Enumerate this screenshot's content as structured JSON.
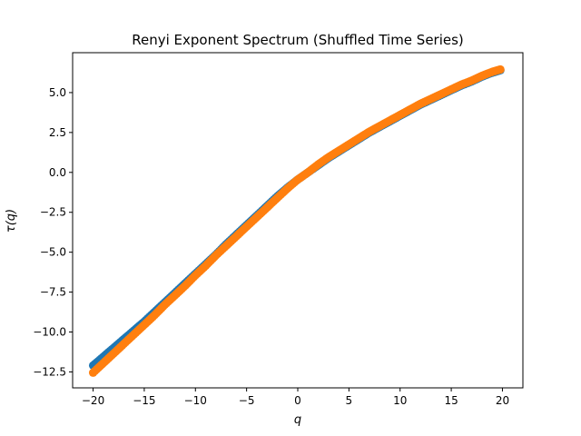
{
  "chart_data": {
    "type": "scatter",
    "title": "Renyi Exponent Spectrum (Shuffled Time Series)",
    "xlabel": "q",
    "ylabel": "τ(q)",
    "xlim": [
      -22,
      22
    ],
    "ylim": [
      -13.5,
      7.5
    ],
    "xticks": [
      -20,
      -15,
      -10,
      -5,
      0,
      5,
      10,
      15,
      20
    ],
    "xtick_labels": [
      "−20",
      "−15",
      "−10",
      "−5",
      "0",
      "5",
      "10",
      "15",
      "20"
    ],
    "yticks": [
      -12.5,
      -10.0,
      -7.5,
      -5.0,
      -2.5,
      0.0,
      2.5,
      5.0
    ],
    "ytick_labels": [
      "−12.5",
      "−10.0",
      "−7.5",
      "−5.0",
      "−2.5",
      "0.0",
      "2.5",
      "5.0"
    ],
    "grid": false,
    "legend": "none",
    "series": [
      {
        "color": "#1f77b4",
        "x": [
          -20,
          -19,
          -18,
          -17,
          -16,
          -15,
          -14,
          -13,
          -12,
          -11,
          -10,
          -9,
          -8,
          -7,
          -6,
          -5,
          -4,
          -3,
          -2,
          -1,
          0,
          1,
          2,
          3,
          4,
          5,
          6,
          7,
          8,
          9,
          10,
          11,
          12,
          13,
          14,
          15,
          16,
          17,
          18,
          19,
          19.8
        ],
        "y": [
          -12.1,
          -11.55,
          -11.0,
          -10.45,
          -9.9,
          -9.35,
          -8.75,
          -8.15,
          -7.55,
          -6.95,
          -6.35,
          -5.75,
          -5.15,
          -4.5,
          -3.9,
          -3.3,
          -2.7,
          -2.1,
          -1.5,
          -0.95,
          -0.45,
          0.0,
          0.45,
          0.9,
          1.3,
          1.7,
          2.1,
          2.5,
          2.85,
          3.2,
          3.55,
          3.9,
          4.25,
          4.55,
          4.85,
          5.15,
          5.45,
          5.7,
          6.0,
          6.25,
          6.4
        ]
      },
      {
        "color": "#ff7f0e",
        "x": [
          -20,
          -19,
          -18,
          -17,
          -16,
          -15,
          -14,
          -13,
          -12,
          -11,
          -10,
          -9,
          -8,
          -7,
          -6,
          -5,
          -4,
          -3,
          -2,
          -1,
          0,
          1,
          2,
          3,
          4,
          5,
          6,
          7,
          8,
          9,
          10,
          11,
          12,
          13,
          14,
          15,
          16,
          17,
          18,
          19,
          19.8
        ],
        "y": [
          -12.55,
          -11.95,
          -11.35,
          -10.75,
          -10.15,
          -9.55,
          -8.95,
          -8.3,
          -7.7,
          -7.1,
          -6.45,
          -5.85,
          -5.2,
          -4.6,
          -4.0,
          -3.4,
          -2.8,
          -2.2,
          -1.6,
          -1.0,
          -0.45,
          0.0,
          0.5,
          0.95,
          1.35,
          1.75,
          2.15,
          2.55,
          2.9,
          3.25,
          3.6,
          3.95,
          4.3,
          4.6,
          4.9,
          5.2,
          5.5,
          5.75,
          6.05,
          6.3,
          6.45
        ]
      }
    ]
  }
}
